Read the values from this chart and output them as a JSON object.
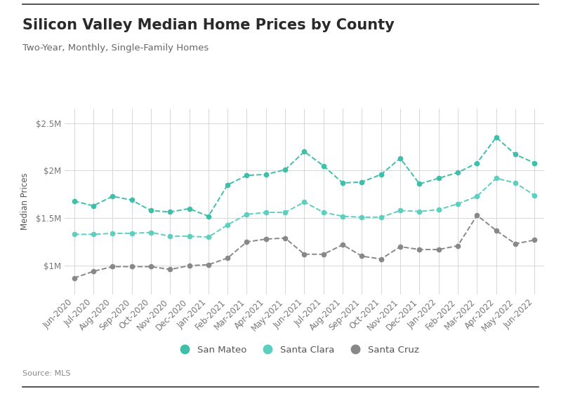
{
  "title": "Silicon Valley Median Home Prices by County",
  "subtitle": "Two-Year, Monthly, Single-Family Homes",
  "source": "Source: MLS",
  "ylabel": "Median Prices",
  "categories": [
    "Jun-2020",
    "Jul-2020",
    "Aug-2020",
    "Sep-2020",
    "Oct-2020",
    "Nov-2020",
    "Dec-2020",
    "Jan-2021",
    "Feb-2021",
    "Mar-2021",
    "Apr-2021",
    "May-2021",
    "Jun-2021",
    "Jul-2021",
    "Aug-2021",
    "Sep-2021",
    "Oct-2021",
    "Nov-2021",
    "Dec-2021",
    "Jan-2022",
    "Feb-2022",
    "Mar-2022",
    "Apr-2022",
    "May-2022",
    "Jun-2022"
  ],
  "san_mateo": [
    1680000,
    1630000,
    1730000,
    1690000,
    1580000,
    1565000,
    1600000,
    1520000,
    1850000,
    1950000,
    1960000,
    2010000,
    2200000,
    2050000,
    1870000,
    1880000,
    1960000,
    2130000,
    1860000,
    1920000,
    1980000,
    2080000,
    2350000,
    2170000,
    2080000
  ],
  "santa_clara": [
    1330000,
    1330000,
    1340000,
    1340000,
    1350000,
    1310000,
    1310000,
    1300000,
    1430000,
    1540000,
    1560000,
    1560000,
    1670000,
    1560000,
    1520000,
    1510000,
    1510000,
    1580000,
    1570000,
    1590000,
    1650000,
    1730000,
    1920000,
    1870000,
    1740000
  ],
  "santa_cruz": [
    870000,
    940000,
    990000,
    990000,
    990000,
    960000,
    1000000,
    1010000,
    1080000,
    1250000,
    1280000,
    1290000,
    1120000,
    1120000,
    1220000,
    1100000,
    1070000,
    1200000,
    1170000,
    1170000,
    1210000,
    1530000,
    1370000,
    1230000,
    1270000
  ],
  "san_mateo_color": "#3dbfaa",
  "santa_clara_color": "#5dcfbf",
  "santa_cruz_color": "#888888",
  "background_color": "#ffffff",
  "grid_color": "#d0d0d0",
  "ylim": [
    700000,
    2650000
  ],
  "yticks": [
    1000000,
    1500000,
    2000000,
    2500000
  ],
  "ytick_labels": [
    "$1M",
    "$1.5M",
    "$2M",
    "$2.5M"
  ],
  "title_fontsize": 15,
  "subtitle_fontsize": 9.5,
  "axis_fontsize": 8.5,
  "legend_labels": [
    "San Mateo",
    "Santa Clara",
    "Santa Cruz"
  ],
  "border_color": "#333333"
}
